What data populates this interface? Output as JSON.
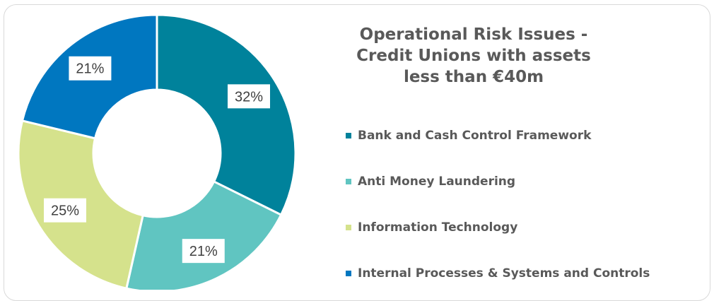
{
  "chart_data": {
    "type": "pie",
    "title": "Operational Risk Issues - Credit Unions with assets less than €40m",
    "title_lines": [
      "Operational Risk Issues -",
      "Credit Unions with assets",
      "less than €40m"
    ],
    "categories": [
      "Bank and Cash Control Framework",
      "Anti Money Laundering",
      "Information Technology",
      "Internal Processes & Systems and Controls"
    ],
    "values": [
      32,
      21,
      25,
      21
    ],
    "data_labels": [
      "32%",
      "21%",
      "25%",
      "21%"
    ],
    "colors": [
      "#00829b",
      "#60c5c1",
      "#d5e28c",
      "#0077c0"
    ],
    "donut": true,
    "legend_position": "right"
  }
}
